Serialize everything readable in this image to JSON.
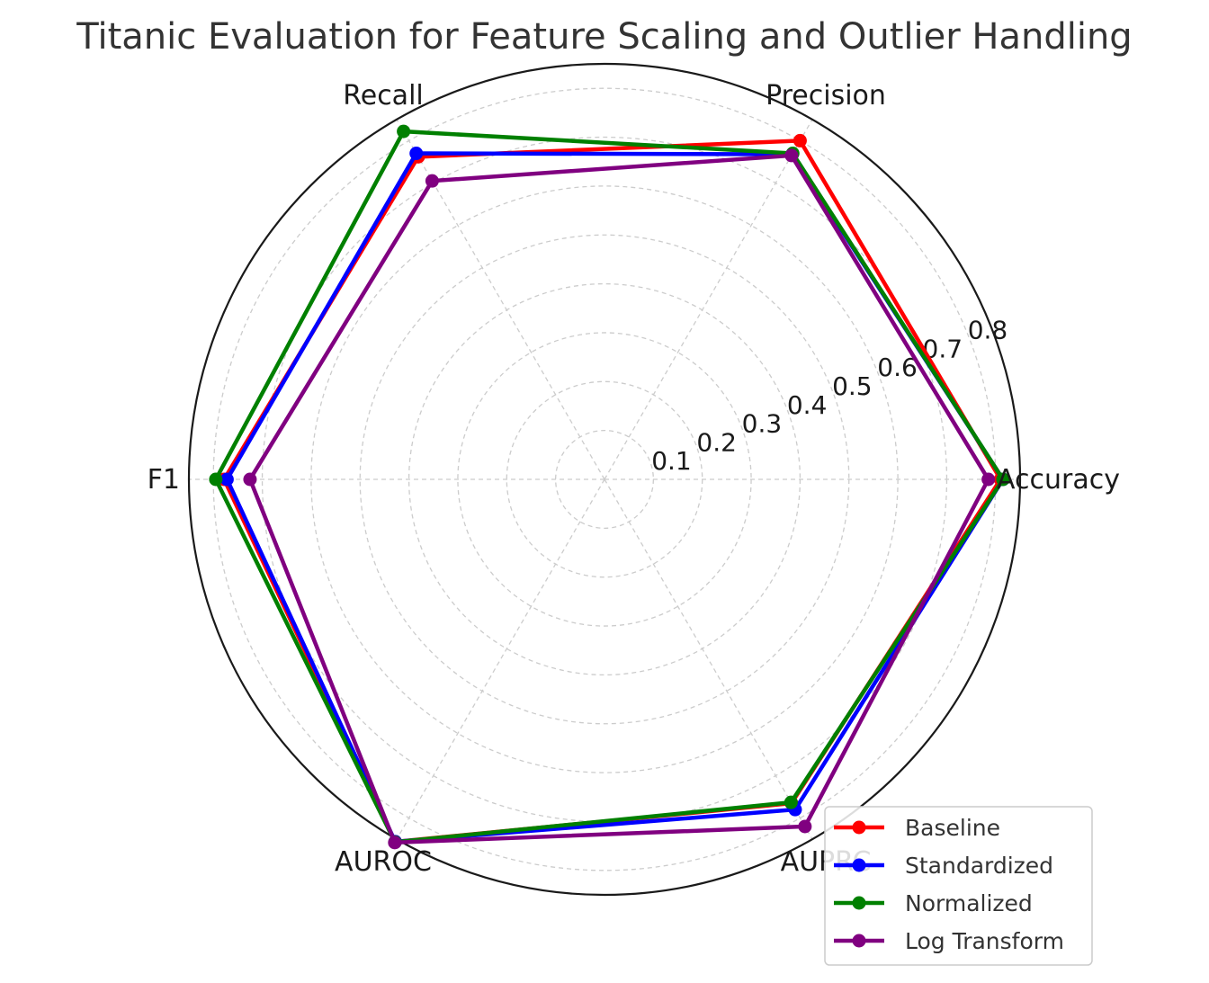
{
  "chart_data": {
    "type": "radar",
    "title": "Titanic Evaluation for Feature Scaling and Outlier Handling",
    "axes": [
      "Accuracy",
      "Precision",
      "Recall",
      "F1",
      "AUROC",
      "AUPRC"
    ],
    "radial_ticks": [
      "0.1",
      "0.2",
      "0.3",
      "0.4",
      "0.5",
      "0.6",
      "0.7",
      "0.8"
    ],
    "rlim": [
      0,
      0.85
    ],
    "grid": true,
    "legend_position": "bottom-right",
    "series": [
      {
        "name": "Baseline",
        "color": "#ff0000",
        "values": [
          0.81,
          0.8,
          0.762,
          0.778,
          0.856,
          0.765
        ]
      },
      {
        "name": "Standardized",
        "color": "#0000ff",
        "values": [
          0.815,
          0.768,
          0.77,
          0.772,
          0.856,
          0.78
        ]
      },
      {
        "name": "Normalized",
        "color": "#008000",
        "values": [
          0.815,
          0.77,
          0.822,
          0.795,
          0.857,
          0.763
        ]
      },
      {
        "name": "Log Transform",
        "color": "#800080",
        "values": [
          0.785,
          0.765,
          0.705,
          0.725,
          0.858,
          0.82
        ]
      }
    ]
  }
}
